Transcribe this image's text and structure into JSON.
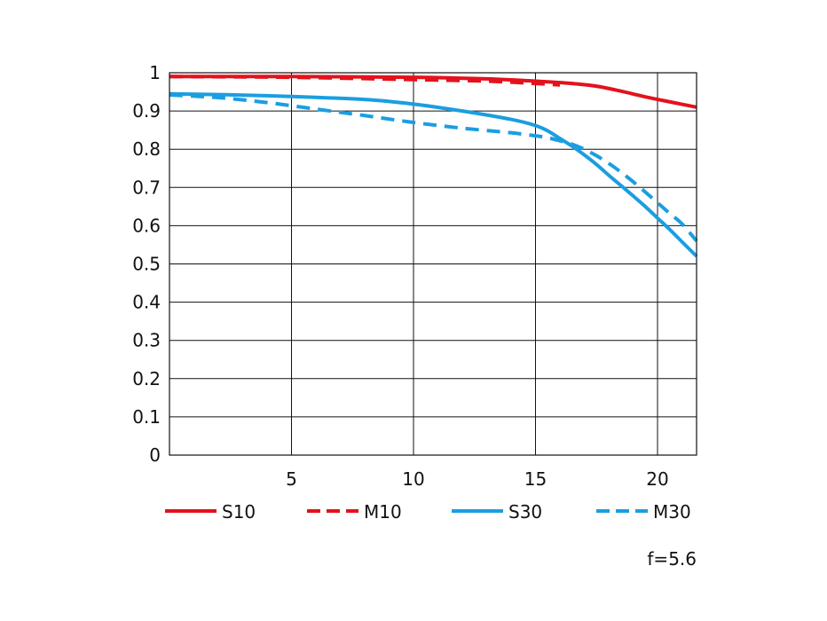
{
  "chart_data": {
    "type": "line",
    "xlim": [
      0,
      21.6
    ],
    "ylim": [
      0,
      1
    ],
    "x_ticks": [
      5,
      10,
      15,
      20
    ],
    "x_tick_labels": [
      "5",
      "10",
      "15",
      "20"
    ],
    "y_ticks": [
      0,
      0.1,
      0.2,
      0.3,
      0.4,
      0.5,
      0.6,
      0.7,
      0.8,
      0.9,
      1
    ],
    "y_tick_labels": [
      "0",
      "0.1",
      "0.2",
      "0.3",
      "0.4",
      "0.5",
      "0.6",
      "0.7",
      "0.8",
      "0.9",
      "1"
    ],
    "grid": true,
    "legend_position": "bottom",
    "annotation": "f=5.6",
    "series": [
      {
        "name": "S10",
        "color": "#e3121c",
        "dashed": false,
        "points": [
          [
            0,
            0.99
          ],
          [
            5,
            0.99
          ],
          [
            10,
            0.988
          ],
          [
            13,
            0.984
          ],
          [
            15,
            0.978
          ],
          [
            16.5,
            0.972
          ],
          [
            17.5,
            0.965
          ],
          [
            18.5,
            0.952
          ],
          [
            19.5,
            0.937
          ],
          [
            20.5,
            0.924
          ],
          [
            21.6,
            0.91
          ]
        ]
      },
      {
        "name": "M10",
        "color": "#e3121c",
        "dashed": true,
        "points": [
          [
            0,
            0.99
          ],
          [
            5,
            0.988
          ],
          [
            10,
            0.982
          ],
          [
            13,
            0.978
          ],
          [
            15,
            0.972
          ],
          [
            16,
            0.968
          ]
        ]
      },
      {
        "name": "S30",
        "color": "#1b9ee0",
        "dashed": false,
        "points": [
          [
            0,
            0.945
          ],
          [
            2,
            0.943
          ],
          [
            5,
            0.938
          ],
          [
            8,
            0.93
          ],
          [
            10,
            0.918
          ],
          [
            12,
            0.9
          ],
          [
            14,
            0.878
          ],
          [
            15,
            0.862
          ],
          [
            15.5,
            0.848
          ],
          [
            16,
            0.828
          ],
          [
            16.5,
            0.808
          ],
          [
            17,
            0.785
          ],
          [
            17.5,
            0.76
          ],
          [
            18,
            0.732
          ],
          [
            18.5,
            0.705
          ],
          [
            19,
            0.678
          ],
          [
            19.5,
            0.65
          ],
          [
            20,
            0.62
          ],
          [
            20.5,
            0.59
          ],
          [
            21,
            0.558
          ],
          [
            21.6,
            0.52
          ]
        ]
      },
      {
        "name": "M30",
        "color": "#1b9ee0",
        "dashed": true,
        "points": [
          [
            0,
            0.942
          ],
          [
            2,
            0.935
          ],
          [
            4,
            0.922
          ],
          [
            6,
            0.905
          ],
          [
            8,
            0.888
          ],
          [
            10,
            0.87
          ],
          [
            12,
            0.855
          ],
          [
            14,
            0.843
          ],
          [
            15,
            0.835
          ],
          [
            15.5,
            0.83
          ],
          [
            16,
            0.822
          ],
          [
            16.5,
            0.813
          ],
          [
            17,
            0.8
          ],
          [
            17.5,
            0.783
          ],
          [
            18,
            0.763
          ],
          [
            18.5,
            0.74
          ],
          [
            19,
            0.715
          ],
          [
            19.5,
            0.688
          ],
          [
            20,
            0.66
          ],
          [
            20.5,
            0.632
          ],
          [
            21,
            0.605
          ],
          [
            21.6,
            0.56
          ]
        ]
      }
    ]
  }
}
